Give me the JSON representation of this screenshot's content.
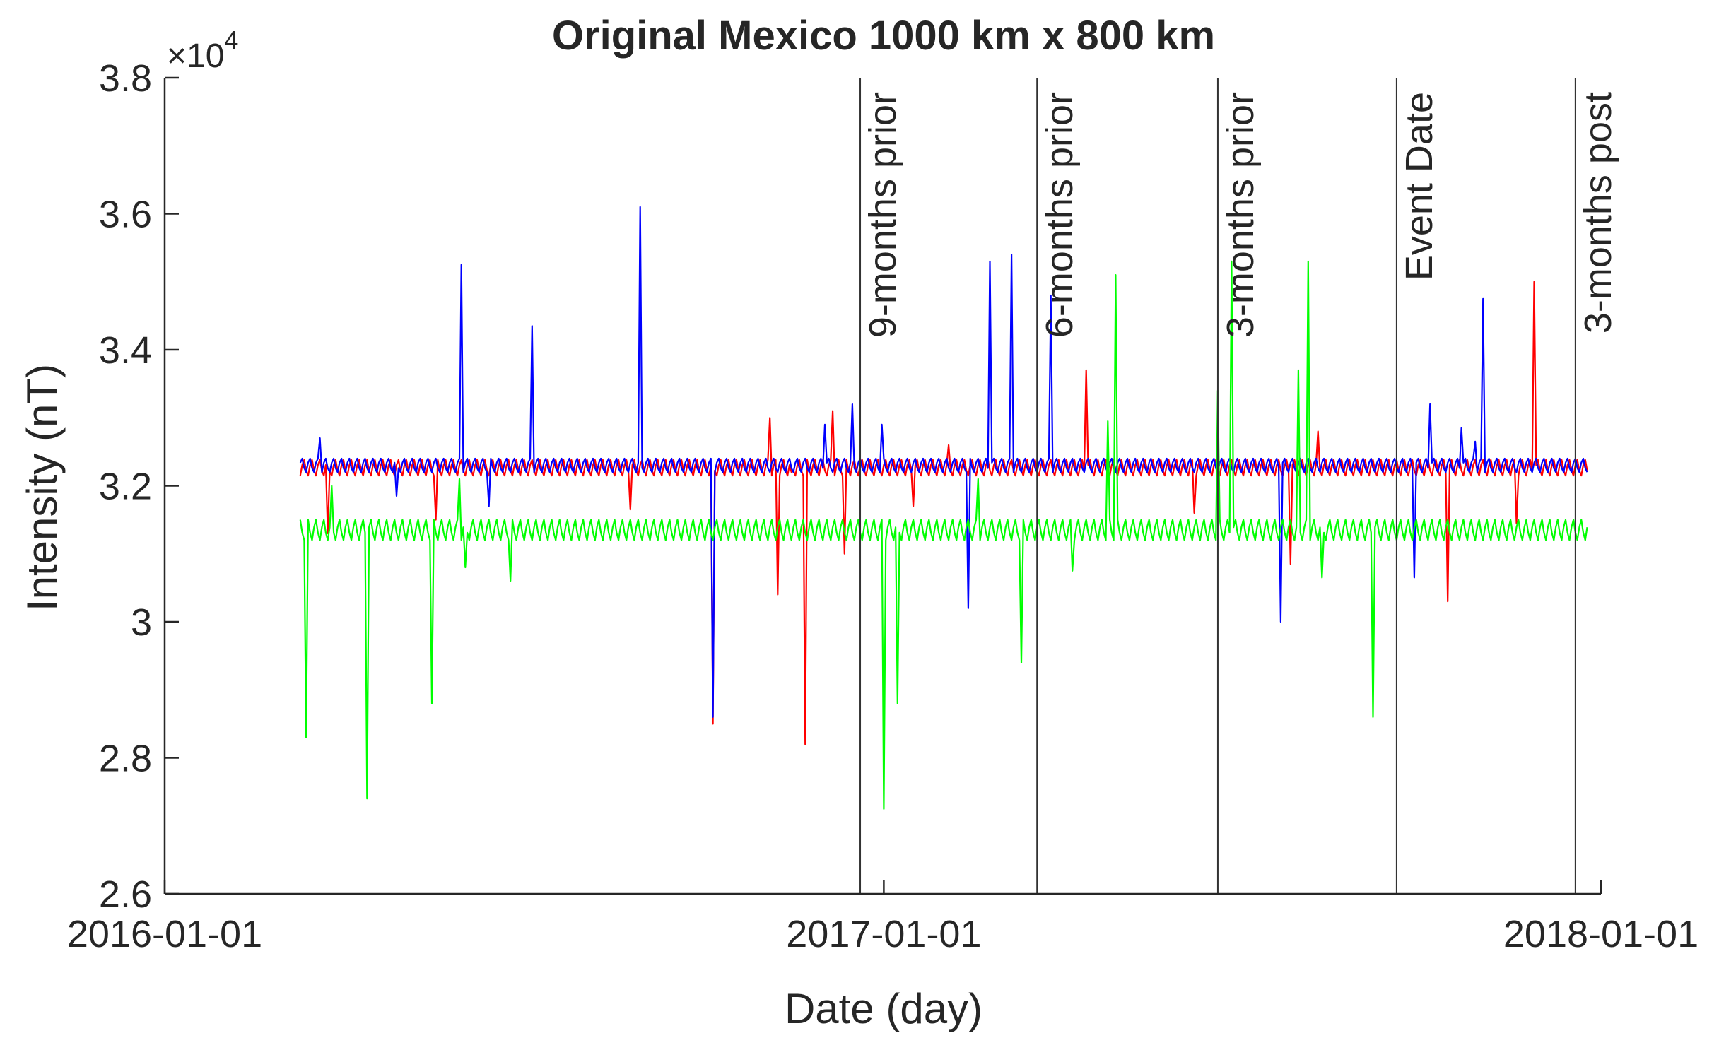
{
  "chart_data": {
    "type": "line",
    "title": "Original Mexico 1000 km x 800 km",
    "xlabel": "Date (day)",
    "ylabel": "Intensity (nT)",
    "y_exponent_label": "×10",
    "y_exponent_power": "4",
    "xlim": [
      "2016-01-01",
      "2018-01-01"
    ],
    "ylim": [
      2.6,
      3.8
    ],
    "x_ticks": [
      "2016-01-01",
      "2017-01-01",
      "2018-01-01"
    ],
    "y_ticks": [
      2.6,
      2.8,
      3.0,
      3.2,
      3.4,
      3.6,
      3.8
    ],
    "y_tick_labels": [
      "2.6",
      "2.8",
      "3",
      "3.2",
      "3.4",
      "3.6",
      "3.8"
    ],
    "grid": false,
    "legend": "none",
    "data_range": [
      "2016-03-10",
      "2017-12-25"
    ],
    "colors": {
      "red": "#ff0000",
      "blue": "#0000ff",
      "green": "#00ff00",
      "axis": "#262626",
      "vline": "#000000"
    },
    "vertical_lines": [
      {
        "date": "2016-12-20",
        "label": "9-months prior"
      },
      {
        "date": "2017-03-20",
        "label": "6-months prior"
      },
      {
        "date": "2017-06-20",
        "label": "3-months prior"
      },
      {
        "date": "2017-09-19",
        "label": "Event Date"
      },
      {
        "date": "2017-12-19",
        "label": "3-months post"
      }
    ],
    "series": [
      {
        "color": "red",
        "baseline": [
          3.215,
          3.238
        ],
        "spikes": [
          {
            "date": "2016-03-24",
            "value": 3.13
          },
          {
            "date": "2016-05-18",
            "value": 3.15
          },
          {
            "date": "2016-08-25",
            "value": 3.165
          },
          {
            "date": "2016-10-06",
            "value": 2.85
          },
          {
            "date": "2016-11-04",
            "value": 3.3
          },
          {
            "date": "2016-11-08",
            "value": 3.04
          },
          {
            "date": "2016-11-15",
            "value": 3.22
          },
          {
            "date": "2016-11-22",
            "value": 2.82
          },
          {
            "date": "2016-12-06",
            "value": 3.31
          },
          {
            "date": "2016-12-12",
            "value": 3.1
          },
          {
            "date": "2017-01-16",
            "value": 3.17
          },
          {
            "date": "2017-02-03",
            "value": 3.26
          },
          {
            "date": "2017-04-14",
            "value": 3.37
          },
          {
            "date": "2017-06-08",
            "value": 3.16
          },
          {
            "date": "2017-07-27",
            "value": 3.085
          },
          {
            "date": "2017-08-10",
            "value": 3.28
          },
          {
            "date": "2017-10-15",
            "value": 3.03
          },
          {
            "date": "2017-11-19",
            "value": 3.145
          },
          {
            "date": "2017-11-28",
            "value": 3.5
          }
        ]
      },
      {
        "color": "blue",
        "baseline": [
          3.22,
          3.24
        ],
        "spikes": [
          {
            "date": "2016-03-20",
            "value": 3.27
          },
          {
            "date": "2016-04-28",
            "value": 3.185
          },
          {
            "date": "2016-05-31",
            "value": 3.525
          },
          {
            "date": "2016-06-14",
            "value": 3.17
          },
          {
            "date": "2016-07-06",
            "value": 3.435
          },
          {
            "date": "2016-08-30",
            "value": 3.61
          },
          {
            "date": "2016-10-06",
            "value": 2.86
          },
          {
            "date": "2016-12-02",
            "value": 3.29
          },
          {
            "date": "2016-12-16",
            "value": 3.32
          },
          {
            "date": "2016-12-31",
            "value": 3.29
          },
          {
            "date": "2017-02-13",
            "value": 3.02
          },
          {
            "date": "2017-02-24",
            "value": 3.53
          },
          {
            "date": "2017-03-07",
            "value": 3.54
          },
          {
            "date": "2017-03-27",
            "value": 3.48
          },
          {
            "date": "2017-07-22",
            "value": 3.0
          },
          {
            "date": "2017-09-28",
            "value": 3.065
          },
          {
            "date": "2017-10-06",
            "value": 3.32
          },
          {
            "date": "2017-10-22",
            "value": 3.285
          },
          {
            "date": "2017-11-02",
            "value": 3.475
          },
          {
            "date": "2017-10-29",
            "value": 3.265
          }
        ]
      },
      {
        "color": "green",
        "baseline": [
          3.12,
          3.15
        ],
        "spikes": [
          {
            "date": "2016-03-13",
            "value": 2.83
          },
          {
            "date": "2016-03-26",
            "value": 3.2
          },
          {
            "date": "2016-04-13",
            "value": 2.74
          },
          {
            "date": "2016-05-16",
            "value": 2.88
          },
          {
            "date": "2016-05-30",
            "value": 3.21
          },
          {
            "date": "2016-06-02",
            "value": 3.08
          },
          {
            "date": "2016-06-25",
            "value": 3.06
          },
          {
            "date": "2017-01-01",
            "value": 2.725
          },
          {
            "date": "2017-01-08",
            "value": 2.88
          },
          {
            "date": "2017-02-18",
            "value": 3.21
          },
          {
            "date": "2017-03-12",
            "value": 2.94
          },
          {
            "date": "2017-04-07",
            "value": 3.075
          },
          {
            "date": "2017-04-25",
            "value": 3.295
          },
          {
            "date": "2017-04-29",
            "value": 3.51
          },
          {
            "date": "2017-06-20",
            "value": 3.34
          },
          {
            "date": "2017-06-27",
            "value": 3.53
          },
          {
            "date": "2017-07-31",
            "value": 3.37
          },
          {
            "date": "2017-08-05",
            "value": 3.53
          },
          {
            "date": "2017-08-12",
            "value": 3.065
          },
          {
            "date": "2017-09-07",
            "value": 2.86
          }
        ]
      }
    ]
  }
}
